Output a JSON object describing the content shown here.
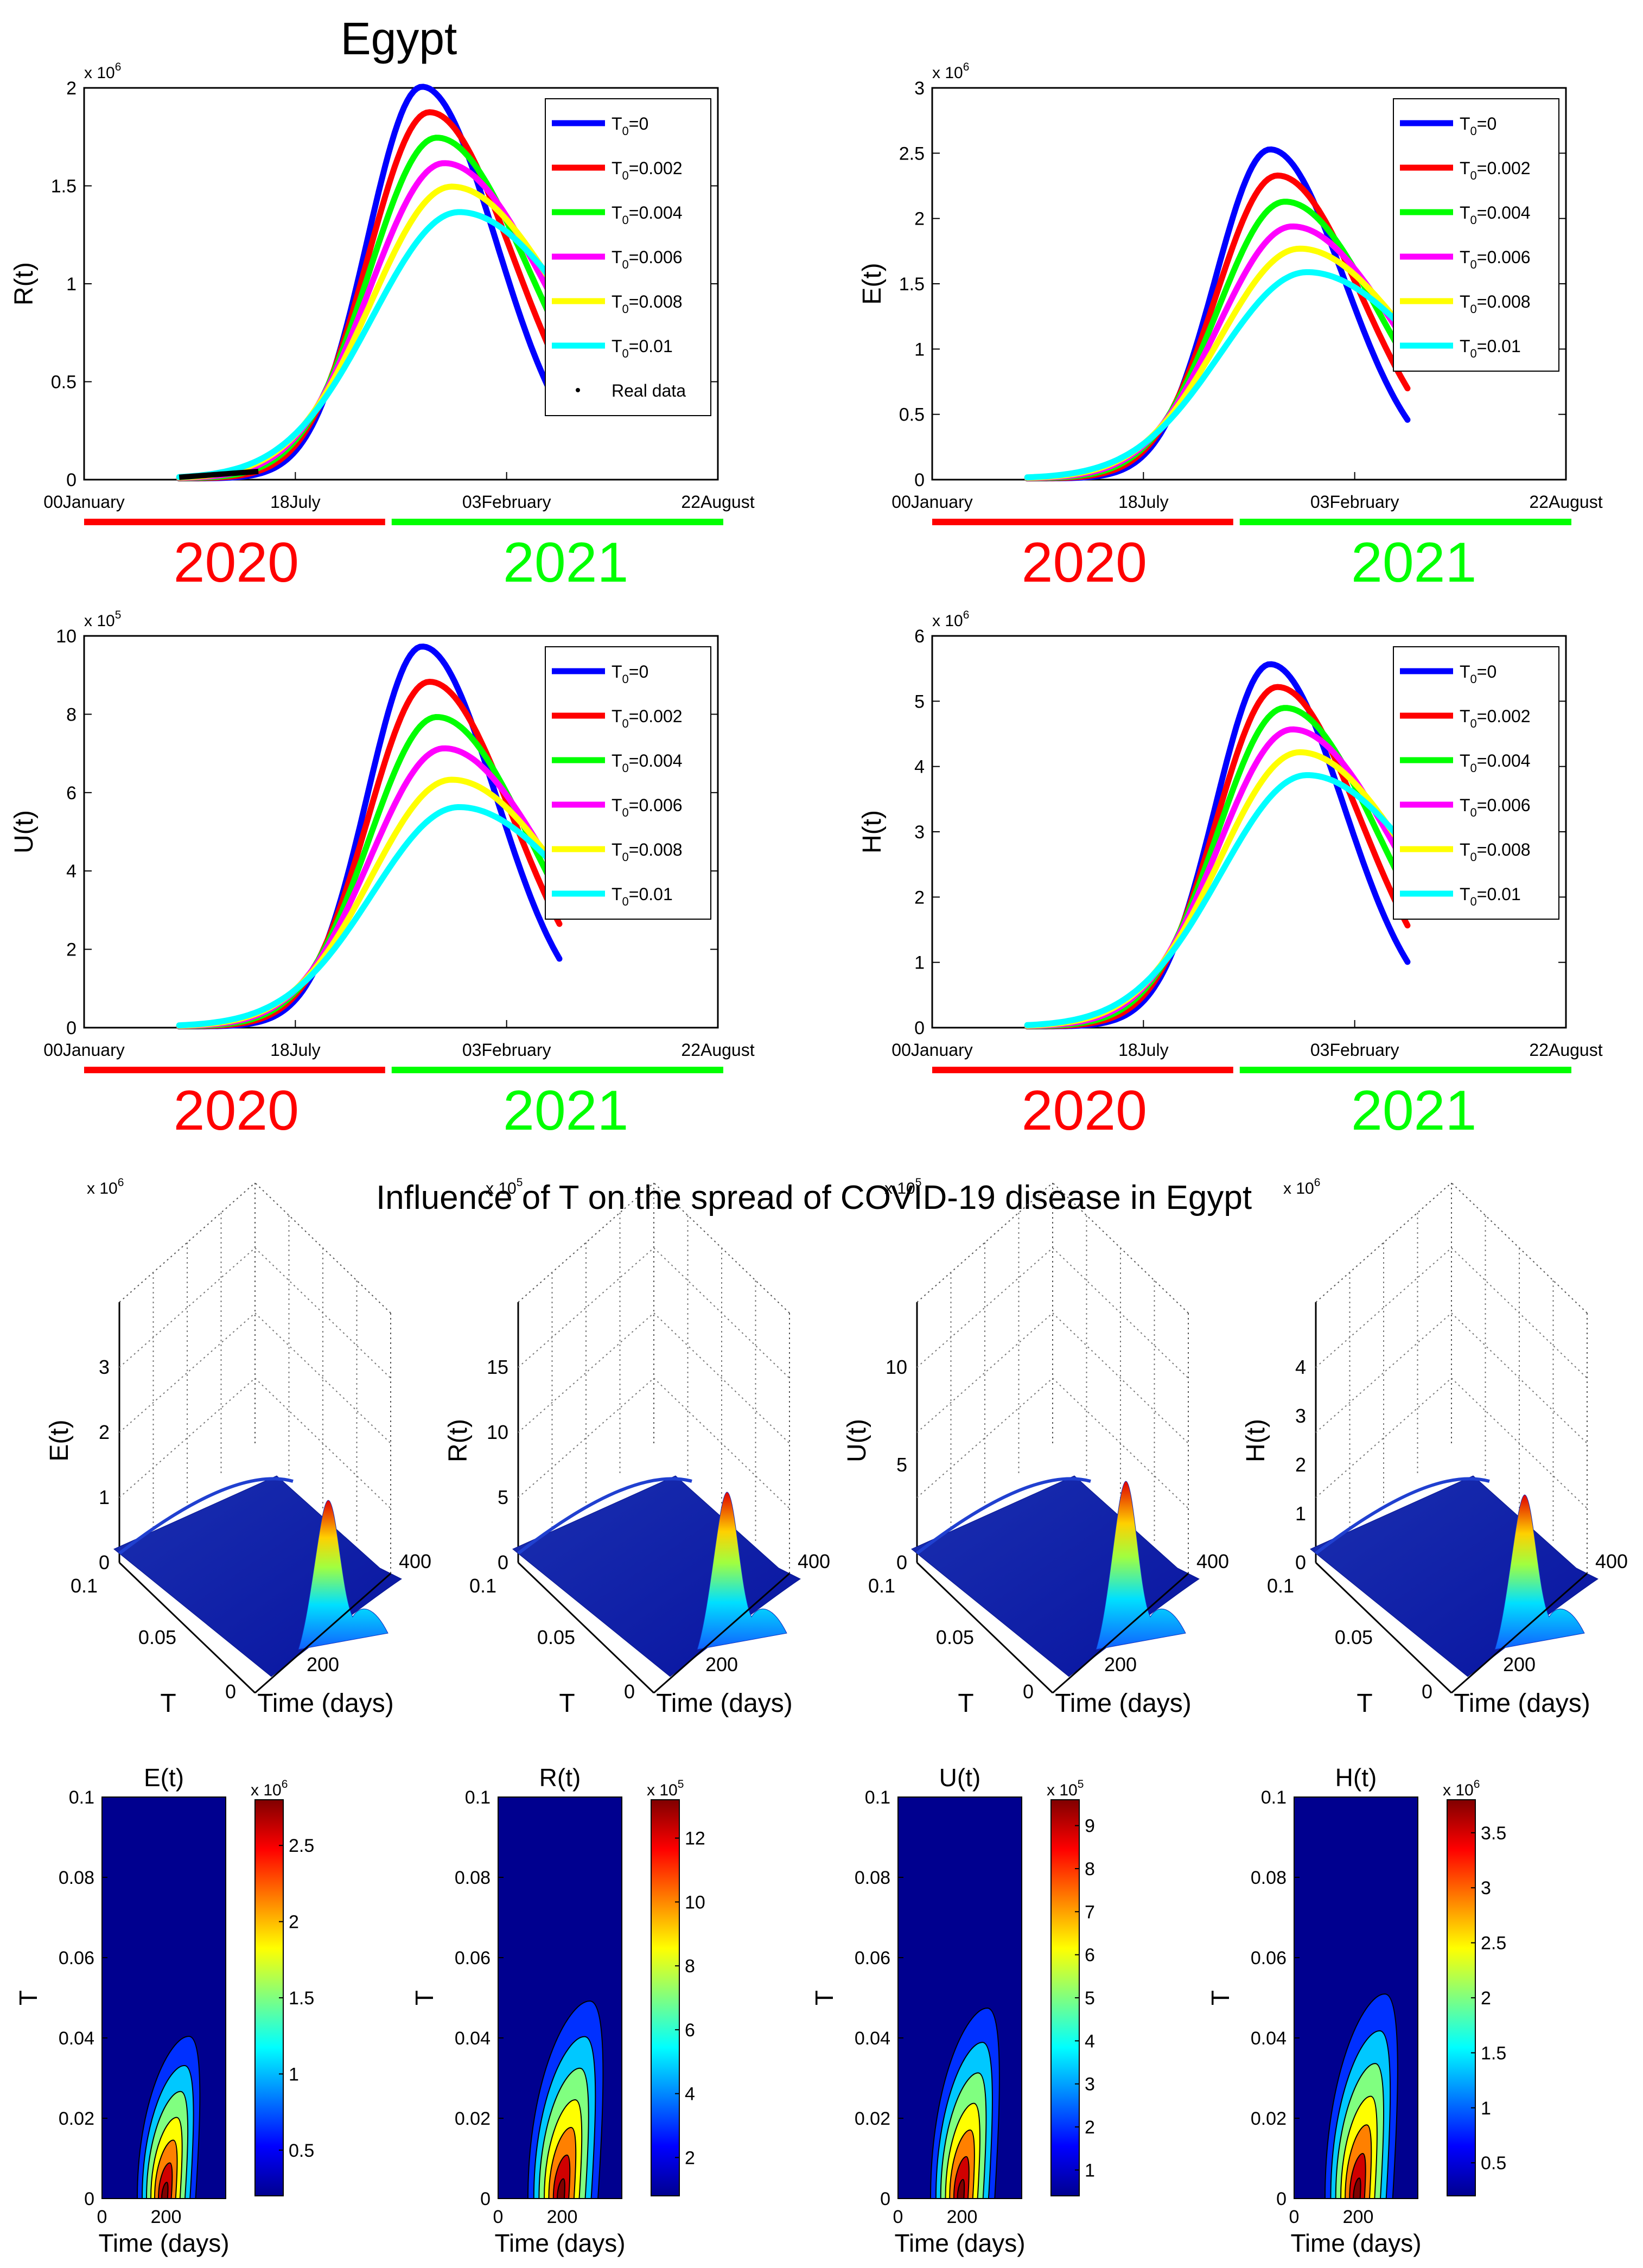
{
  "country_title": "Egypt",
  "section_title": "Influence of T on the spread of COVID-19 disease in Egypt",
  "year_bars": {
    "left_label": "2020",
    "right_label": "2021",
    "left_color": "#ff0000",
    "right_color": "#00ff00"
  },
  "legend_colors": [
    "#0000ff",
    "#ff0000",
    "#00ff00",
    "#ff00ff",
    "#ffff00",
    "#00ffff"
  ],
  "chart_data": [
    {
      "type": "line",
      "id": "R",
      "ylabel": "R(t)",
      "exponent": "x 10",
      "exponent_power": "6",
      "ylim": [
        0,
        2
      ],
      "yticks": [
        "0",
        "0.5",
        "1",
        "1.5",
        "2"
      ],
      "xlim": [
        0,
        600
      ],
      "xticks": [
        "00January",
        "18July",
        "03February",
        "22August"
      ],
      "series": [
        {
          "name": "T0=0",
          "sub": "0",
          "eq": "=0",
          "peak": 2.0
        },
        {
          "name": "T0=0.002",
          "sub": "0",
          "eq": "=0.002",
          "peak": 1.87
        },
        {
          "name": "T0=0.004",
          "sub": "0",
          "eq": "=0.004",
          "peak": 1.74
        },
        {
          "name": "T0=0.006",
          "sub": "0",
          "eq": "=0.006",
          "peak": 1.61
        },
        {
          "name": "T0=0.008",
          "sub": "0",
          "eq": "=0.008",
          "peak": 1.49
        },
        {
          "name": "T0=0.01",
          "sub": "0",
          "eq": "=0.01",
          "peak": 1.36
        }
      ],
      "real_data_label": "Real data"
    },
    {
      "type": "line",
      "id": "E",
      "ylabel": "E(t)",
      "exponent": "x 10",
      "exponent_power": "6",
      "ylim": [
        0,
        3
      ],
      "yticks": [
        "0",
        "0.5",
        "1",
        "1.5",
        "2",
        "2.5",
        "3"
      ],
      "xlim": [
        0,
        600
      ],
      "xticks": [
        "00January",
        "18July",
        "03February",
        "22August"
      ],
      "series": [
        {
          "name": "T0=0",
          "sub": "0",
          "eq": "=0",
          "peak": 2.52
        },
        {
          "name": "T0=0.002",
          "sub": "0",
          "eq": "=0.002",
          "peak": 2.32
        },
        {
          "name": "T0=0.004",
          "sub": "0",
          "eq": "=0.004",
          "peak": 2.12
        },
        {
          "name": "T0=0.006",
          "sub": "0",
          "eq": "=0.006",
          "peak": 1.93
        },
        {
          "name": "T0=0.008",
          "sub": "0",
          "eq": "=0.008",
          "peak": 1.76
        },
        {
          "name": "T0=0.01",
          "sub": "0",
          "eq": "=0.01",
          "peak": 1.58
        }
      ]
    },
    {
      "type": "line",
      "id": "U",
      "ylabel": "U(t)",
      "exponent": "x 10",
      "exponent_power": "5",
      "ylim": [
        0,
        10
      ],
      "yticks": [
        "0",
        "2",
        "4",
        "6",
        "8",
        "10"
      ],
      "xlim": [
        0,
        600
      ],
      "xticks": [
        "00January",
        "18July",
        "03February",
        "22August"
      ],
      "series": [
        {
          "name": "T0=0",
          "sub": "0",
          "eq": "=0",
          "peak": 9.7
        },
        {
          "name": "T0=0.002",
          "sub": "0",
          "eq": "=0.002",
          "peak": 8.8
        },
        {
          "name": "T0=0.004",
          "sub": "0",
          "eq": "=0.004",
          "peak": 7.9
        },
        {
          "name": "T0=0.006",
          "sub": "0",
          "eq": "=0.006",
          "peak": 7.1
        },
        {
          "name": "T0=0.008",
          "sub": "0",
          "eq": "=0.008",
          "peak": 6.3
        },
        {
          "name": "T0=0.01",
          "sub": "0",
          "eq": "=0.01",
          "peak": 5.6
        }
      ]
    },
    {
      "type": "line",
      "id": "H",
      "ylabel": "H(t)",
      "exponent": "x 10",
      "exponent_power": "6",
      "ylim": [
        0,
        6
      ],
      "yticks": [
        "0",
        "1",
        "2",
        "3",
        "4",
        "5",
        "6"
      ],
      "xlim": [
        0,
        600
      ],
      "xticks": [
        "00January",
        "18July",
        "03February",
        "22August"
      ],
      "series": [
        {
          "name": "T0=0",
          "sub": "0",
          "eq": "=0",
          "peak": 5.55
        },
        {
          "name": "T0=0.002",
          "sub": "0",
          "eq": "=0.002",
          "peak": 5.2
        },
        {
          "name": "T0=0.004",
          "sub": "0",
          "eq": "=0.004",
          "peak": 4.88
        },
        {
          "name": "T0=0.006",
          "sub": "0",
          "eq": "=0.006",
          "peak": 4.55
        },
        {
          "name": "T0=0.008",
          "sub": "0",
          "eq": "=0.008",
          "peak": 4.2
        },
        {
          "name": "T0=0.01",
          "sub": "0",
          "eq": "=0.01",
          "peak": 3.85
        }
      ]
    },
    {
      "type": "surface",
      "id": "E3d",
      "zlabel": "E(t)",
      "exponent": "x 10",
      "exponent_power": "6",
      "zticks": [
        "0",
        "1",
        "2",
        "3"
      ],
      "Tticks": [
        "0",
        "0.05",
        "0.1"
      ],
      "timeticks": [
        "200",
        "400"
      ],
      "xlabel": "Time (days)",
      "ylabel": "T"
    },
    {
      "type": "surface",
      "id": "R3d",
      "zlabel": "R(t)",
      "exponent": "x 10",
      "exponent_power": "5",
      "zticks": [
        "0",
        "5",
        "10",
        "15"
      ],
      "Tticks": [
        "0",
        "0.05",
        "0.1"
      ],
      "timeticks": [
        "200",
        "400"
      ],
      "xlabel": "Time (days)",
      "ylabel": "T"
    },
    {
      "type": "surface",
      "id": "U3d",
      "zlabel": "U(t)",
      "exponent": "x 10",
      "exponent_power": "5",
      "zticks": [
        "0",
        "5",
        "10"
      ],
      "Tticks": [
        "0",
        "0.05",
        "0.1"
      ],
      "timeticks": [
        "200",
        "400"
      ],
      "xlabel": "Time (days)",
      "ylabel": "T"
    },
    {
      "type": "surface",
      "id": "H3d",
      "zlabel": "H(t)",
      "exponent": "x 10",
      "exponent_power": "6",
      "zticks": [
        "0",
        "1",
        "2",
        "3",
        "4"
      ],
      "Tticks": [
        "0",
        "0.05",
        "0.1"
      ],
      "timeticks": [
        "200",
        "400"
      ],
      "xlabel": "Time (days)",
      "ylabel": "T"
    },
    {
      "type": "heatmap",
      "id": "Ehm",
      "title": "E(t)",
      "exponent": "x 10",
      "exponent_power": "6",
      "cbticks": [
        "0.5",
        "1",
        "1.5",
        "2",
        "2.5"
      ],
      "yticks": [
        "0",
        "0.02",
        "0.04",
        "0.06",
        "0.08",
        "0.1"
      ],
      "xticks": [
        "0",
        "200"
      ],
      "xlabel": "Time (days)",
      "ylabel": "T"
    },
    {
      "type": "heatmap",
      "id": "Rhm",
      "title": "R(t)",
      "exponent": "x 10",
      "exponent_power": "5",
      "cbticks": [
        "2",
        "4",
        "6",
        "8",
        "10",
        "12"
      ],
      "yticks": [
        "0",
        "0.02",
        "0.04",
        "0.06",
        "0.08",
        "0.1"
      ],
      "xticks": [
        "0",
        "200"
      ],
      "xlabel": "Time (days)",
      "ylabel": "T"
    },
    {
      "type": "heatmap",
      "id": "Uhm",
      "title": "U(t)",
      "exponent": "x 10",
      "exponent_power": "5",
      "cbticks": [
        "1",
        "2",
        "3",
        "4",
        "5",
        "6",
        "7",
        "8",
        "9"
      ],
      "yticks": [
        "0",
        "0.02",
        "0.04",
        "0.06",
        "0.08",
        "0.1"
      ],
      "xticks": [
        "0",
        "200"
      ],
      "xlabel": "Time (days)",
      "ylabel": "T"
    },
    {
      "type": "heatmap",
      "id": "Hhm",
      "title": "H(t)",
      "exponent": "x 10",
      "exponent_power": "6",
      "cbticks": [
        "0.5",
        "1",
        "1.5",
        "2",
        "2.5",
        "3",
        "3.5"
      ],
      "yticks": [
        "0",
        "0.02",
        "0.04",
        "0.06",
        "0.08",
        "0.1"
      ],
      "xticks": [
        "0",
        "200"
      ],
      "xlabel": "Time (days)",
      "ylabel": "T"
    }
  ]
}
